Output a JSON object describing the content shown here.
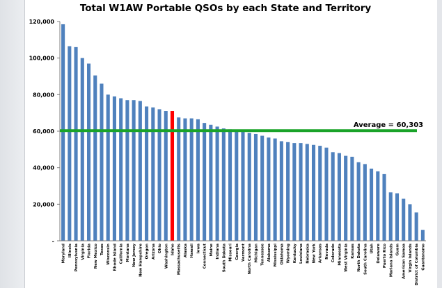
{
  "chart_data": {
    "type": "bar",
    "title": "Total W1AW Portable QSOs by each State and Territory",
    "xlabel": "",
    "ylabel": "",
    "ylim": [
      0,
      120000
    ],
    "yticks": [
      0,
      20000,
      40000,
      60000,
      80000,
      100000,
      120000
    ],
    "ytick_labels": [
      "-",
      "20,000",
      "40,000",
      "60,000",
      "80,000",
      "100,000",
      "120,000"
    ],
    "grid": false,
    "bar_color": "#4f81bd",
    "highlight_color": "#ff0000",
    "highlight_category": "Idaho",
    "average": {
      "value": 60303,
      "label": "Average = 60,303",
      "color": "#1aa329"
    },
    "categories": [
      "Maryland",
      "Illinois",
      "Pennsylvania",
      "Virginia",
      "Florida",
      "New Mexico",
      "Texas",
      "Wisconsin",
      "Rhode Island",
      "California",
      "Montana",
      "New Jersey",
      "New Hampshire",
      "Oregon",
      "Arizona",
      "Ohio",
      "Washington",
      "Idaho",
      "Massachusetts",
      "Alaska",
      "Hawaii",
      "Iowa",
      "Connecticut",
      "Maine",
      "Indiana",
      "South Dakota",
      "Missouri",
      "Georgia",
      "Vermont",
      "North Carolina",
      "Michigan",
      "Tennessee",
      "Alabama",
      "Mississippi",
      "Oklahoma",
      "Wyoming",
      "Kentucky",
      "Louisiana",
      "Nebraska",
      "New York",
      "Arkansas",
      "Nevada",
      "Colorado",
      "Minnesota",
      "West Virginia",
      "Kansas",
      "North Dakota",
      "South Carolina",
      "Utah",
      "Delaware",
      "Puerto Rico",
      "Mariana Islands",
      "Guam",
      "American Samoa",
      "Virgin Islands",
      "District of Columbia",
      "Guantanamo"
    ],
    "values": [
      118500,
      106500,
      106000,
      100000,
      97000,
      90500,
      86000,
      80000,
      79000,
      78000,
      77000,
      77000,
      76500,
      73500,
      73000,
      72000,
      71000,
      71000,
      67500,
      67000,
      67000,
      66500,
      64500,
      63500,
      62500,
      61500,
      61000,
      60500,
      60000,
      59000,
      58500,
      57500,
      56500,
      56000,
      54500,
      54000,
      53500,
      53500,
      53000,
      52500,
      52000,
      51000,
      48500,
      48000,
      46500,
      46000,
      43000,
      42000,
      39500,
      38000,
      36500,
      26500,
      26000,
      23000,
      20000,
      15500,
      6000
    ]
  }
}
